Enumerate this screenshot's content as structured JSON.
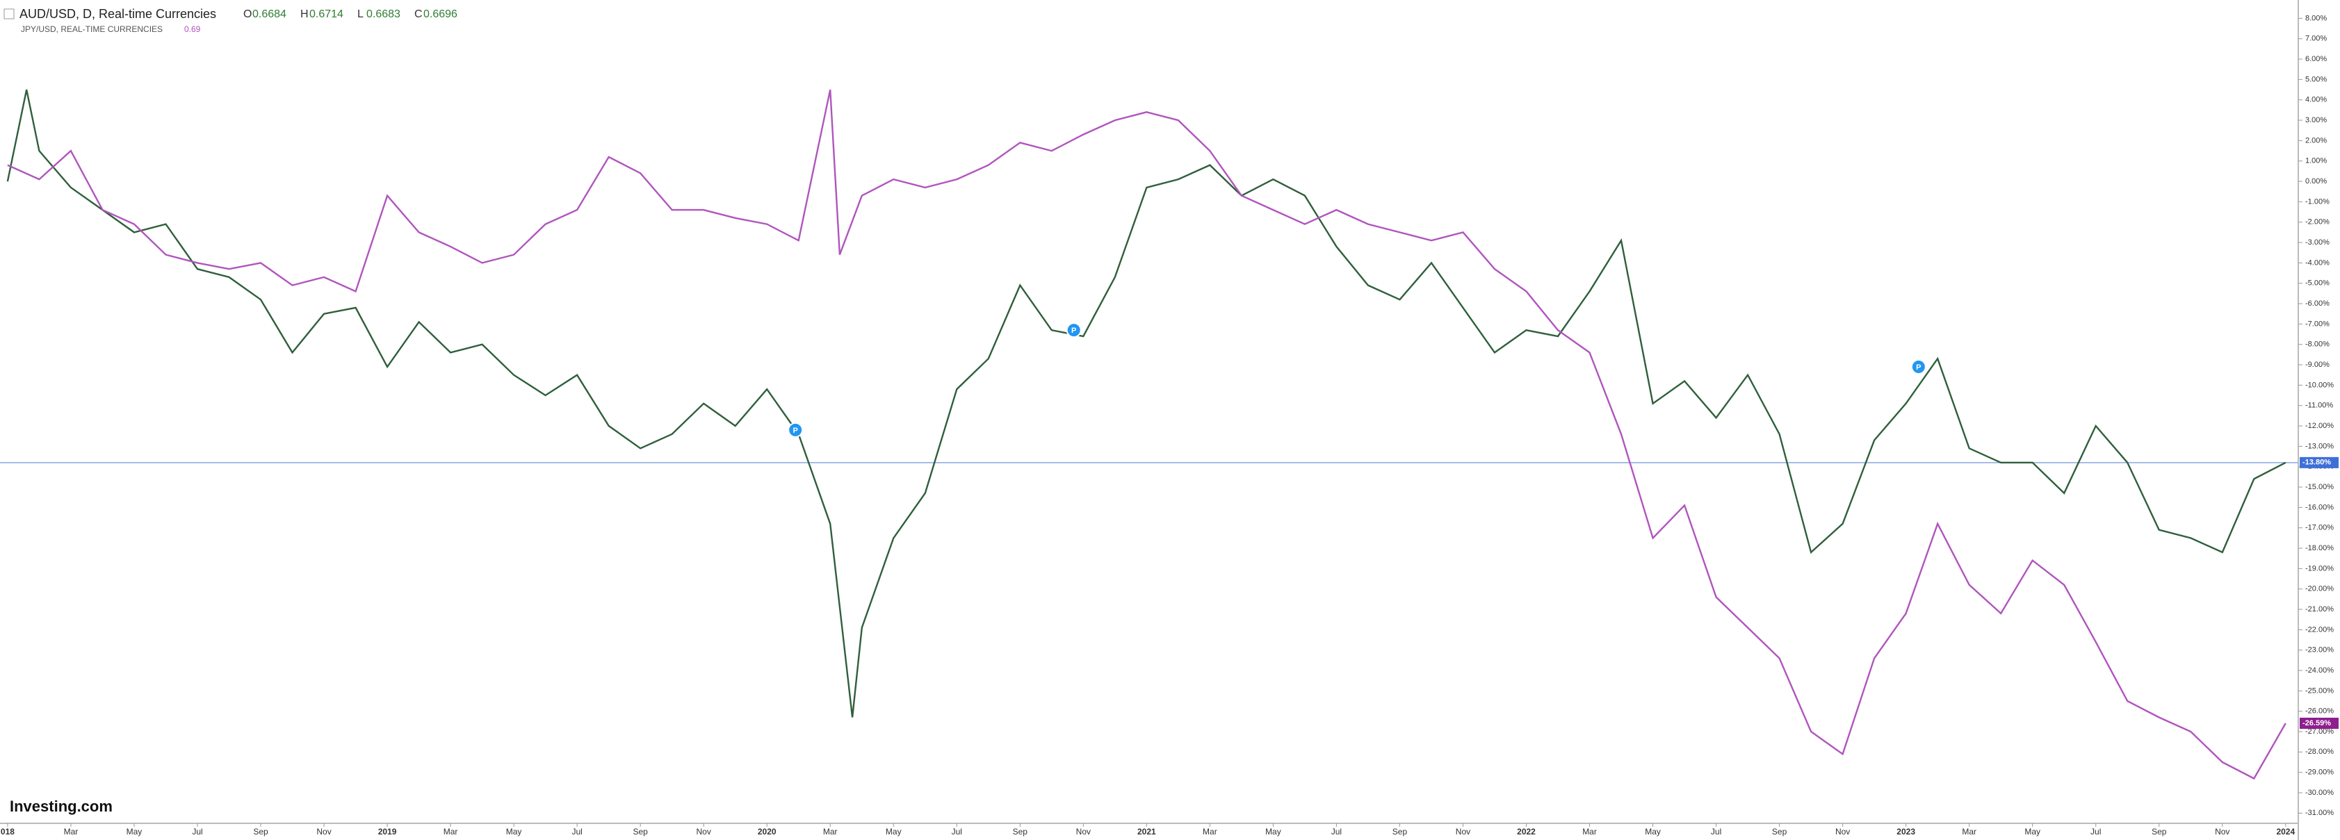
{
  "chart_data": {
    "type": "line",
    "header": {
      "title": "AUD/USD, D, Real-time Currencies",
      "ohlc": [
        {
          "label": "O",
          "value": 0.6684
        },
        {
          "label": "H",
          "value": 0.6714
        },
        {
          "label": "L",
          "value": 0.6683
        },
        {
          "label": "C",
          "value": 0.6696
        }
      ],
      "compare_title": "JPY/USD, REAL-TIME CURRENCIES",
      "compare_value": 0.69
    },
    "logo": "Investing.com",
    "xlim": [
      -0.24,
      72.4
    ],
    "ylim": [
      -31.5,
      8.9
    ],
    "xticks": [
      {
        "value": 0,
        "label": "018"
      },
      {
        "value": 2,
        "label": "Mar"
      },
      {
        "value": 4,
        "label": "May"
      },
      {
        "value": 6,
        "label": "Jul"
      },
      {
        "value": 8,
        "label": "Sep"
      },
      {
        "value": 10,
        "label": "Nov"
      },
      {
        "value": 12,
        "label": "2019"
      },
      {
        "value": 14,
        "label": "Mar"
      },
      {
        "value": 16,
        "label": "May"
      },
      {
        "value": 18,
        "label": "Jul"
      },
      {
        "value": 20,
        "label": "Sep"
      },
      {
        "value": 22,
        "label": "Nov"
      },
      {
        "value": 24,
        "label": "2020"
      },
      {
        "value": 26,
        "label": "Mar"
      },
      {
        "value": 28,
        "label": "May"
      },
      {
        "value": 30,
        "label": "Jul"
      },
      {
        "value": 32,
        "label": "Sep"
      },
      {
        "value": 34,
        "label": "Nov"
      },
      {
        "value": 36,
        "label": "2021"
      },
      {
        "value": 38,
        "label": "Mar"
      },
      {
        "value": 40,
        "label": "May"
      },
      {
        "value": 42,
        "label": "Jul"
      },
      {
        "value": 44,
        "label": "Sep"
      },
      {
        "value": 46,
        "label": "Nov"
      },
      {
        "value": 48,
        "label": "2022"
      },
      {
        "value": 50,
        "label": "Mar"
      },
      {
        "value": 52,
        "label": "May"
      },
      {
        "value": 54,
        "label": "Jul"
      },
      {
        "value": 56,
        "label": "Sep"
      },
      {
        "value": 58,
        "label": "Nov"
      },
      {
        "value": 60,
        "label": "2023"
      },
      {
        "value": 62,
        "label": "Mar"
      },
      {
        "value": 64,
        "label": "May"
      },
      {
        "value": 66,
        "label": "Jul"
      },
      {
        "value": 68,
        "label": "Sep"
      },
      {
        "value": 70,
        "label": "Nov"
      },
      {
        "value": 72,
        "label": "2024"
      }
    ],
    "yticks": [
      {
        "value": 8,
        "label": "8.00%"
      },
      {
        "value": 7,
        "label": "7.00%"
      },
      {
        "value": 6,
        "label": "6.00%"
      },
      {
        "value": 5,
        "label": "5.00%"
      },
      {
        "value": 4,
        "label": "4.00%"
      },
      {
        "value": 3,
        "label": "3.00%"
      },
      {
        "value": 2,
        "label": "2.00%"
      },
      {
        "value": 1,
        "label": "1.00%"
      },
      {
        "value": 0,
        "label": "0.00%"
      },
      {
        "value": -1,
        "label": "-1.00%"
      },
      {
        "value": -2,
        "label": "-2.00%"
      },
      {
        "value": -3,
        "label": "-3.00%"
      },
      {
        "value": -4,
        "label": "-4.00%"
      },
      {
        "value": -5,
        "label": "-5.00%"
      },
      {
        "value": -6,
        "label": "-6.00%"
      },
      {
        "value": -7,
        "label": "-7.00%"
      },
      {
        "value": -8,
        "label": "-8.00%"
      },
      {
        "value": -9,
        "label": "-9.00%"
      },
      {
        "value": -10,
        "label": "-10.00%"
      },
      {
        "value": -11,
        "label": "-11.00%"
      },
      {
        "value": -12,
        "label": "-12.00%"
      },
      {
        "value": -13,
        "label": "-13.00%"
      },
      {
        "value": -14,
        "label": "-14.00%"
      },
      {
        "value": -15,
        "label": "-15.00%"
      },
      {
        "value": -16,
        "label": "-16.00%"
      },
      {
        "value": -17,
        "label": "-17.00%"
      },
      {
        "value": -18,
        "label": "-18.00%"
      },
      {
        "value": -19,
        "label": "-19.00%"
      },
      {
        "value": -20,
        "label": "-20.00%"
      },
      {
        "value": -21,
        "label": "-21.00%"
      },
      {
        "value": -22,
        "label": "-22.00%"
      },
      {
        "value": -23,
        "label": "-23.00%"
      },
      {
        "value": -24,
        "label": "-24.00%"
      },
      {
        "value": -25,
        "label": "-25.00%"
      },
      {
        "value": -26,
        "label": "-26.00%"
      },
      {
        "value": -27,
        "label": "-27.00%"
      },
      {
        "value": -28,
        "label": "-28.00%"
      },
      {
        "value": -29,
        "label": "-29.00%"
      },
      {
        "value": -30,
        "label": "-30.00%"
      },
      {
        "value": -31,
        "label": "-31.00%"
      }
    ],
    "series": [
      {
        "name": "AUD/USD",
        "color": "#2f5f3c",
        "x": [
          0,
          0.6,
          1,
          2,
          3,
          4,
          5,
          6,
          7,
          8,
          9,
          10,
          11,
          12,
          13,
          14,
          15,
          16,
          17,
          18,
          19,
          20,
          21,
          22,
          23,
          24,
          25,
          26,
          26.7,
          27,
          28,
          29,
          30,
          31,
          32,
          33,
          34,
          35,
          36,
          37,
          38,
          39,
          40,
          41,
          42,
          43,
          44,
          45,
          46,
          47,
          48,
          49,
          50,
          51,
          52,
          53,
          54,
          55,
          56,
          57,
          58,
          59,
          60,
          61,
          62,
          63,
          64,
          65,
          66,
          67,
          68,
          69,
          70,
          71,
          72
        ],
        "values": [
          0,
          4.5,
          1.5,
          -0.3,
          -1.4,
          -2.5,
          -2.1,
          -4.3,
          -4.7,
          -5.8,
          -8.4,
          -6.5,
          -6.2,
          -9.1,
          -6.9,
          -8.4,
          -8,
          -9.5,
          -10.5,
          -9.5,
          -12,
          -13.1,
          -12.4,
          -10.9,
          -12,
          -10.2,
          -12.4,
          -16.8,
          -26.3,
          -21.9,
          -17.5,
          -15.3,
          -10.2,
          -8.7,
          -5.1,
          -7.3,
          -7.6,
          -4.7,
          -0.3,
          0.1,
          0.8,
          -0.7,
          0.1,
          -0.7,
          -3.2,
          -5.1,
          -5.8,
          -4,
          -6.2,
          -8.4,
          -7.3,
          -7.6,
          -5.4,
          -2.9,
          -10.9,
          -9.8,
          -11.6,
          -9.5,
          -12.4,
          -18.2,
          -16.8,
          -12.7,
          -10.9,
          -8.7,
          -13.1,
          -13.8,
          -13.8,
          -15.3,
          -12,
          -13.8,
          -17.1,
          -17.5,
          -18.2,
          -14.6,
          -13.8
        ],
        "last_label": "-13.80%",
        "label_color": "#3d6fd8"
      },
      {
        "name": "JPY/USD",
        "color": "#b055bd",
        "x": [
          0,
          1,
          2,
          3,
          4,
          5,
          6,
          7,
          8,
          9,
          10,
          11,
          12,
          13,
          14,
          15,
          16,
          17,
          18,
          19,
          20,
          21,
          22,
          23,
          24,
          25,
          26,
          26.3,
          27,
          28,
          29,
          30,
          31,
          32,
          33,
          34,
          35,
          36,
          37,
          38,
          39,
          40,
          41,
          42,
          43,
          44,
          45,
          46,
          47,
          48,
          49,
          50,
          51,
          52,
          53,
          54,
          55,
          56,
          57,
          58,
          59,
          60,
          61,
          62,
          63,
          64,
          65,
          66,
          67,
          68,
          69,
          70,
          71,
          72
        ],
        "values": [
          0.8,
          0.1,
          1.5,
          -1.4,
          -2.1,
          -3.6,
          -4,
          -4.3,
          -4,
          -5.1,
          -4.7,
          -5.4,
          -0.7,
          -2.5,
          -3.2,
          -4,
          -3.6,
          -2.1,
          -1.4,
          1.2,
          0.4,
          -1.4,
          -1.4,
          -1.8,
          -2.1,
          -2.9,
          4.5,
          -3.6,
          -0.7,
          0.1,
          -0.3,
          0.1,
          0.8,
          1.9,
          1.5,
          2.3,
          3,
          3.4,
          3,
          1.5,
          -0.7,
          -1.4,
          -2.1,
          -1.4,
          -2.1,
          -2.5,
          -2.9,
          -2.5,
          -4.3,
          -5.4,
          -7.3,
          -8.4,
          -12.4,
          -17.5,
          -15.9,
          -20.4,
          -21.9,
          -23.4,
          -27,
          -28.1,
          -23.4,
          -21.2,
          -16.8,
          -19.8,
          -21.2,
          -18.6,
          -19.8,
          -22.6,
          -25.5,
          -26.3,
          -27,
          -28.5,
          -29.3,
          -26.59
        ],
        "last_label": "-26.59%",
        "label_color": "#8e1f8e"
      }
    ],
    "price_line": -13.8,
    "markers": [
      {
        "x": 24.9,
        "y": -12.2,
        "label": "P"
      },
      {
        "x": 33.7,
        "y": -7.3,
        "label": "P"
      },
      {
        "x": 60.4,
        "y": -9.1,
        "label": "P"
      }
    ]
  }
}
